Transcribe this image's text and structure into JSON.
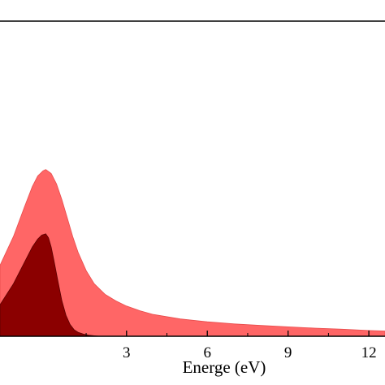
{
  "chart_data": {
    "type": "area",
    "title": "",
    "xlabel": "Energe (eV)",
    "ylabel": "",
    "xlim": [
      -1.7,
      12.6
    ],
    "ylim": [
      0,
      1.2
    ],
    "grid": false,
    "legend": "none",
    "xticks": [
      3,
      6,
      9,
      12
    ],
    "x_minor_ticks": [
      1.5,
      4.5,
      7.5,
      10.5
    ],
    "series": [
      {
        "color": "#ff6666",
        "x": [
          -1.7,
          -1.2,
          -0.8,
          -0.5,
          -0.3,
          -0.1,
          0.0,
          0.2,
          0.4,
          0.6,
          0.8,
          1.0,
          1.2,
          1.5,
          1.8,
          2.2,
          2.6,
          3.0,
          3.5,
          4.0,
          5.0,
          6.0,
          7.0,
          8.0,
          9.0,
          10.0,
          11.0,
          12.0,
          12.6
        ],
        "y": [
          0.27,
          0.38,
          0.49,
          0.57,
          0.61,
          0.63,
          0.635,
          0.62,
          0.58,
          0.52,
          0.45,
          0.38,
          0.32,
          0.25,
          0.2,
          0.16,
          0.135,
          0.115,
          0.097,
          0.083,
          0.066,
          0.055,
          0.047,
          0.041,
          0.036,
          0.031,
          0.027,
          0.022,
          0.02
        ]
      },
      {
        "color": "#8b0000",
        "x": [
          -1.7,
          -1.2,
          -0.8,
          -0.5,
          -0.3,
          -0.15,
          0.0,
          0.1,
          0.2,
          0.3,
          0.45,
          0.6,
          0.75,
          0.9,
          1.05,
          1.2,
          1.4,
          1.6,
          1.8,
          2.0
        ],
        "y": [
          0.12,
          0.2,
          0.28,
          0.34,
          0.37,
          0.385,
          0.39,
          0.375,
          0.34,
          0.29,
          0.21,
          0.135,
          0.08,
          0.045,
          0.025,
          0.015,
          0.008,
          0.004,
          0.002,
          0.0
        ]
      }
    ]
  }
}
